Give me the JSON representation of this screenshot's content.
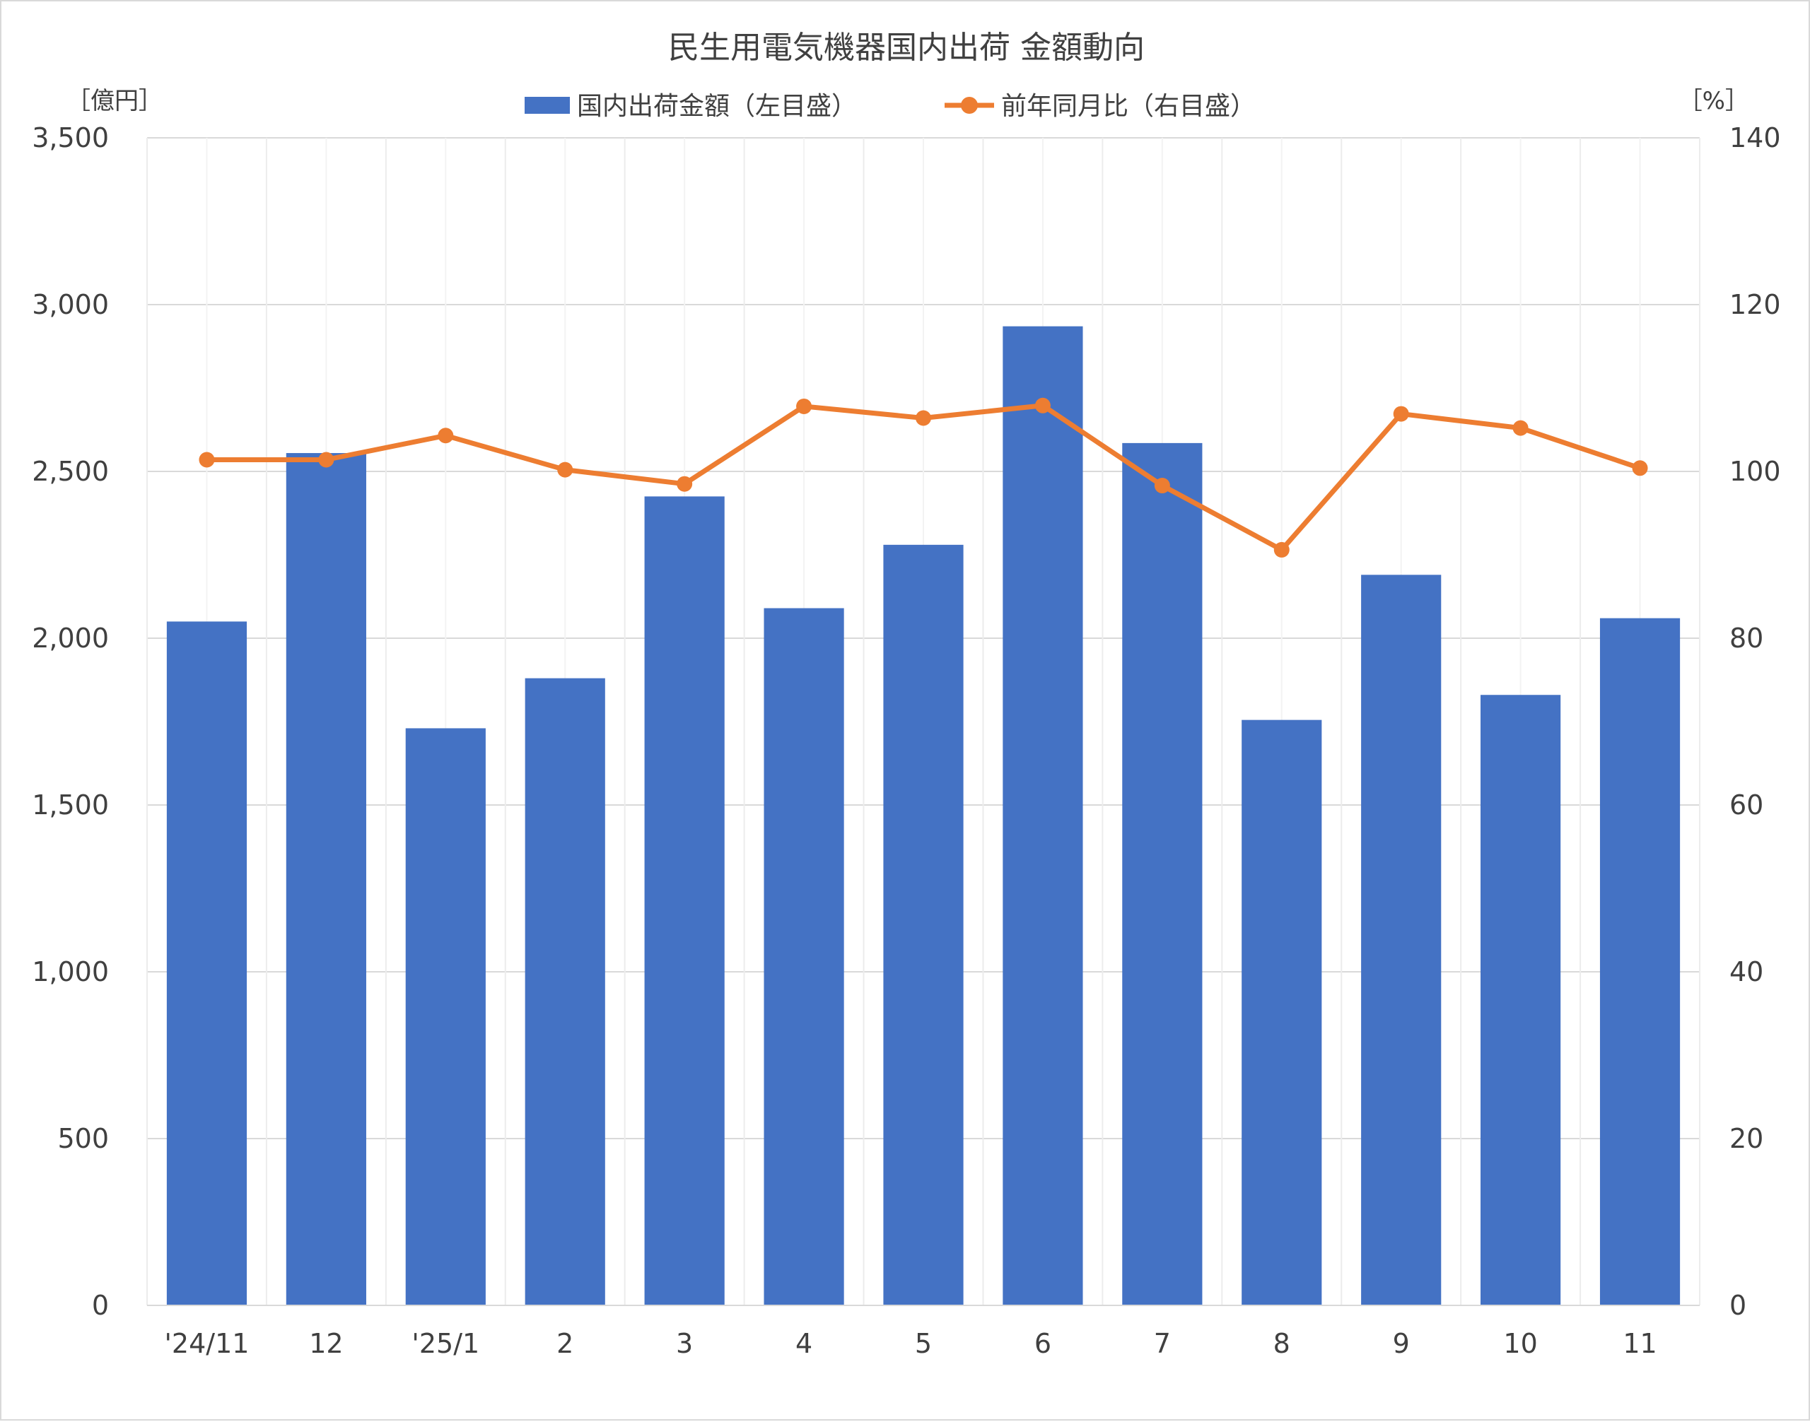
{
  "chart_data": {
    "type": "bar+line",
    "title": "民生用電気機器国内出荷 金額動向",
    "y_left_unit": "［億円］",
    "y_right_unit": "［%］",
    "categories": [
      "'24/11",
      "12",
      "'25/1",
      "2",
      "3",
      "4",
      "5",
      "6",
      "7",
      "8",
      "9",
      "10",
      "11"
    ],
    "series": [
      {
        "name": "国内出荷金額（左目盛）",
        "type": "bar",
        "axis": "left",
        "color": "#4472C4",
        "values": [
          2050,
          2555,
          1730,
          1880,
          2425,
          2090,
          2280,
          2935,
          2585,
          1755,
          2190,
          1830,
          2060
        ]
      },
      {
        "name": "前年同月比（右目盛）",
        "type": "line",
        "axis": "right",
        "color": "#ED7D31",
        "values": [
          101.4,
          101.4,
          104.3,
          100.2,
          98.5,
          107.8,
          106.4,
          107.9,
          98.3,
          90.6,
          106.9,
          105.2,
          100.4
        ]
      }
    ],
    "y_left": {
      "min": 0,
      "max": 3500,
      "ticks": [
        "0",
        "500",
        "1,000",
        "1,500",
        "2,000",
        "2,500",
        "3,000",
        "3,500"
      ],
      "tick_values": [
        0,
        500,
        1000,
        1500,
        2000,
        2500,
        3000,
        3500
      ]
    },
    "y_right": {
      "min": 0,
      "max": 140,
      "ticks": [
        "0",
        "20",
        "40",
        "60",
        "80",
        "100",
        "120",
        "140"
      ],
      "tick_values": [
        0,
        20,
        40,
        60,
        80,
        100,
        120,
        140
      ]
    },
    "grid": true,
    "legend": "top"
  }
}
